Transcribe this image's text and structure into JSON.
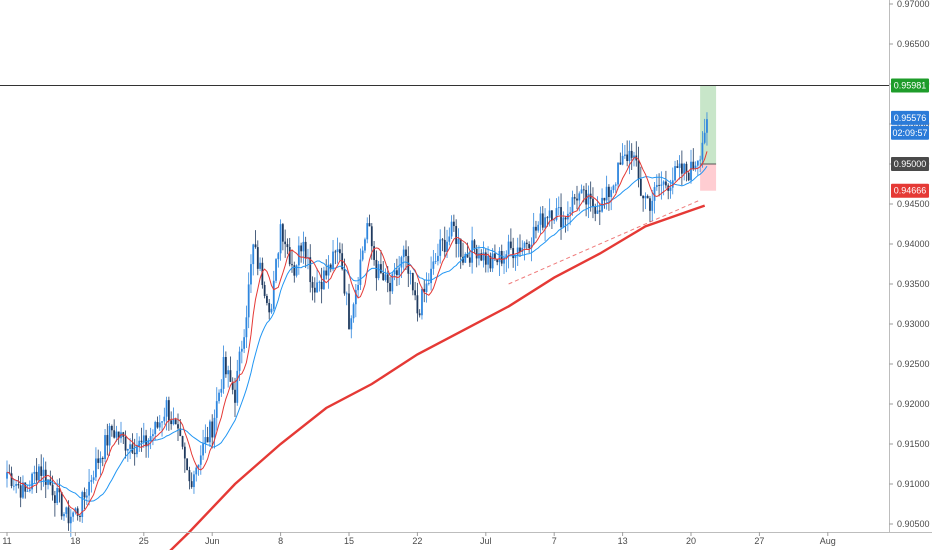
{
  "chart_data": {
    "type": "candlestick",
    "title": "",
    "xlabel": "",
    "ylabel": "",
    "ylim": [
      0.9045,
      0.9705
    ],
    "y_ticks": [
      "0.97000",
      "0.96500",
      "0.96000",
      "0.95500",
      "0.95000",
      "0.94500",
      "0.94000",
      "0.93500",
      "0.93000",
      "0.92500",
      "0.92000",
      "0.91500",
      "0.91000",
      "0.90500"
    ],
    "y_tick_values": [
      0.97,
      0.965,
      0.96,
      0.955,
      0.95,
      0.945,
      0.94,
      0.935,
      0.93,
      0.925,
      0.92,
      0.915,
      0.91,
      0.905
    ],
    "x_ticks": [
      "11",
      "18",
      "25",
      "Jun",
      "8",
      "15",
      "22",
      "Jul",
      "7",
      "13",
      "20",
      "27",
      "Aug"
    ],
    "x_tick_index": [
      0,
      30,
      60,
      90,
      120,
      150,
      180,
      210,
      240,
      270,
      300,
      330,
      360
    ],
    "grid": false,
    "candle_up_color": "#2e86de",
    "candle_down_color": "#1f3a5f",
    "ma_fast_color": "#e53935",
    "ma_mid_color": "#2196f3",
    "ma_slow_color": "#e53935",
    "resistance_level": 0.95981,
    "support_trend": {
      "from_index": 220,
      "from_value": 0.935,
      "to_index": 304,
      "to_value": 0.9455
    },
    "position": {
      "start_index": 304,
      "end_index": 311,
      "entry": 0.95,
      "target": 0.95981,
      "stop": 0.94666
    },
    "price_labels": [
      {
        "name": "resistance",
        "text": "0.95981",
        "value": 0.95981,
        "color": "#1e9c2a"
      },
      {
        "name": "last-price",
        "text": "0.95576",
        "value": 0.95576,
        "color": "#2b7bd8"
      },
      {
        "name": "countdown",
        "text": "02:09:57",
        "value": 0.9539,
        "color": "#2b7bd8"
      },
      {
        "name": "entry",
        "text": "0.95000",
        "value": 0.95,
        "color": "#4a4a4a"
      },
      {
        "name": "stop",
        "text": "0.94666",
        "value": 0.94666,
        "color": "#e53935"
      }
    ],
    "anchors": [
      [
        0,
        0.9115
      ],
      [
        8,
        0.9088
      ],
      [
        14,
        0.9122
      ],
      [
        20,
        0.9095
      ],
      [
        26,
        0.9058
      ],
      [
        32,
        0.9068
      ],
      [
        38,
        0.9118
      ],
      [
        46,
        0.9168
      ],
      [
        52,
        0.9152
      ],
      [
        60,
        0.9148
      ],
      [
        66,
        0.9172
      ],
      [
        70,
        0.9198
      ],
      [
        76,
        0.9148
      ],
      [
        80,
        0.9102
      ],
      [
        84,
        0.9132
      ],
      [
        90,
        0.9172
      ],
      [
        95,
        0.9245
      ],
      [
        100,
        0.9212
      ],
      [
        105,
        0.9318
      ],
      [
        108,
        0.9395
      ],
      [
        112,
        0.9358
      ],
      [
        116,
        0.9318
      ],
      [
        120,
        0.9425
      ],
      [
        126,
        0.9368
      ],
      [
        130,
        0.9412
      ],
      [
        134,
        0.9348
      ],
      [
        140,
        0.9362
      ],
      [
        146,
        0.9395
      ],
      [
        150,
        0.9305
      ],
      [
        154,
        0.9362
      ],
      [
        158,
        0.9425
      ],
      [
        162,
        0.9368
      ],
      [
        168,
        0.9342
      ],
      [
        174,
        0.9385
      ],
      [
        180,
        0.9315
      ],
      [
        186,
        0.9362
      ],
      [
        190,
        0.9395
      ],
      [
        196,
        0.9418
      ],
      [
        200,
        0.9385
      ],
      [
        206,
        0.9395
      ],
      [
        212,
        0.9375
      ],
      [
        216,
        0.9382
      ],
      [
        220,
        0.9392
      ],
      [
        226,
        0.9398
      ],
      [
        232,
        0.9418
      ],
      [
        238,
        0.9445
      ],
      [
        244,
        0.9432
      ],
      [
        250,
        0.9462
      ],
      [
        256,
        0.9448
      ],
      [
        262,
        0.9452
      ],
      [
        266,
        0.9478
      ],
      [
        270,
        0.9502
      ],
      [
        274,
        0.9518
      ],
      [
        278,
        0.9465
      ],
      [
        282,
        0.9452
      ],
      [
        286,
        0.9472
      ],
      [
        290,
        0.9478
      ],
      [
        294,
        0.9488
      ],
      [
        300,
        0.9492
      ],
      [
        304,
        0.9518
      ],
      [
        307,
        0.9556
      ]
    ],
    "slow_ma_anchors": [
      [
        62,
        0.899
      ],
      [
        80,
        0.904
      ],
      [
        100,
        0.91
      ],
      [
        120,
        0.915
      ],
      [
        140,
        0.9195
      ],
      [
        160,
        0.9225
      ],
      [
        180,
        0.9262
      ],
      [
        200,
        0.9292
      ],
      [
        220,
        0.9322
      ],
      [
        240,
        0.9358
      ],
      [
        260,
        0.9388
      ],
      [
        280,
        0.9422
      ],
      [
        300,
        0.9442
      ],
      [
        306,
        0.9448
      ]
    ]
  }
}
